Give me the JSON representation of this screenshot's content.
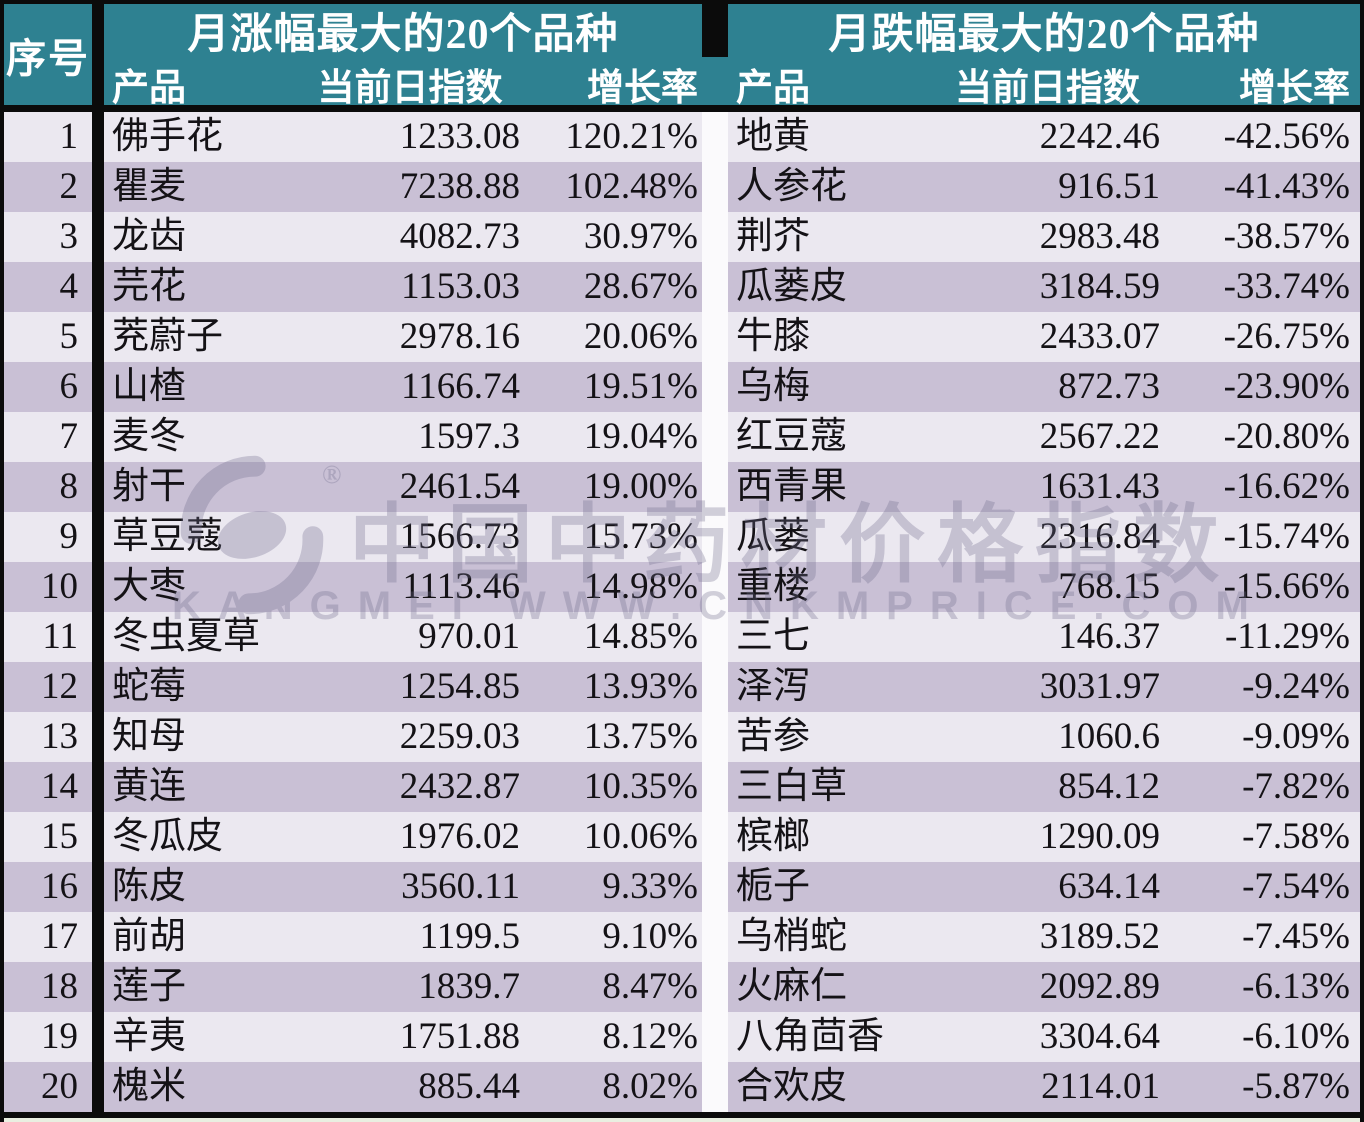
{
  "colors": {
    "header_teal": "#2E8191",
    "row_light": "#EBE8F0",
    "row_dark": "#C9C0D5",
    "border_black": "#0B0B0B",
    "header_text": "#FFFFFF",
    "body_text": "#141216"
  },
  "table": {
    "index_header": "序号",
    "gainers": {
      "title": "月涨幅最大的20个品种",
      "columns": [
        "产品",
        "当前日指数",
        "增长率"
      ],
      "rows": [
        {
          "rank": 1,
          "product": "佛手花",
          "index": "1233.08",
          "rate": "120.21%"
        },
        {
          "rank": 2,
          "product": "瞿麦",
          "index": "7238.88",
          "rate": "102.48%"
        },
        {
          "rank": 3,
          "product": "龙齿",
          "index": "4082.73",
          "rate": "30.97%"
        },
        {
          "rank": 4,
          "product": "芫花",
          "index": "1153.03",
          "rate": "28.67%"
        },
        {
          "rank": 5,
          "product": "茺蔚子",
          "index": "2978.16",
          "rate": "20.06%"
        },
        {
          "rank": 6,
          "product": "山楂",
          "index": "1166.74",
          "rate": "19.51%"
        },
        {
          "rank": 7,
          "product": "麦冬",
          "index": "1597.3",
          "rate": "19.04%"
        },
        {
          "rank": 8,
          "product": "射干",
          "index": "2461.54",
          "rate": "19.00%"
        },
        {
          "rank": 9,
          "product": "草豆蔻",
          "index": "1566.73",
          "rate": "15.73%"
        },
        {
          "rank": 10,
          "product": "大枣",
          "index": "1113.46",
          "rate": "14.98%"
        },
        {
          "rank": 11,
          "product": "冬虫夏草",
          "index": "970.01",
          "rate": "14.85%"
        },
        {
          "rank": 12,
          "product": "蛇莓",
          "index": "1254.85",
          "rate": "13.93%"
        },
        {
          "rank": 13,
          "product": "知母",
          "index": "2259.03",
          "rate": "13.75%"
        },
        {
          "rank": 14,
          "product": "黄连",
          "index": "2432.87",
          "rate": "10.35%"
        },
        {
          "rank": 15,
          "product": "冬瓜皮",
          "index": "1976.02",
          "rate": "10.06%"
        },
        {
          "rank": 16,
          "product": "陈皮",
          "index": "3560.11",
          "rate": "9.33%"
        },
        {
          "rank": 17,
          "product": "前胡",
          "index": "1199.5",
          "rate": "9.10%"
        },
        {
          "rank": 18,
          "product": "莲子",
          "index": "1839.7",
          "rate": "8.47%"
        },
        {
          "rank": 19,
          "product": "辛夷",
          "index": "1751.88",
          "rate": "8.12%"
        },
        {
          "rank": 20,
          "product": "槐米",
          "index": "885.44",
          "rate": "8.02%"
        }
      ]
    },
    "losers": {
      "title": "月跌幅最大的20个品种",
      "columns": [
        "产品",
        "当前日指数",
        "增长率"
      ],
      "rows": [
        {
          "rank": 1,
          "product": "地黄",
          "index": "2242.46",
          "rate": "-42.56%"
        },
        {
          "rank": 2,
          "product": "人参花",
          "index": "916.51",
          "rate": "-41.43%"
        },
        {
          "rank": 3,
          "product": "荆芥",
          "index": "2983.48",
          "rate": "-38.57%"
        },
        {
          "rank": 4,
          "product": "瓜蒌皮",
          "index": "3184.59",
          "rate": "-33.74%"
        },
        {
          "rank": 5,
          "product": "牛膝",
          "index": "2433.07",
          "rate": "-26.75%"
        },
        {
          "rank": 6,
          "product": "乌梅",
          "index": "872.73",
          "rate": "-23.90%"
        },
        {
          "rank": 7,
          "product": "红豆蔻",
          "index": "2567.22",
          "rate": "-20.80%"
        },
        {
          "rank": 8,
          "product": "西青果",
          "index": "1631.43",
          "rate": "-16.62%"
        },
        {
          "rank": 9,
          "product": "瓜蒌",
          "index": "2316.84",
          "rate": "-15.74%"
        },
        {
          "rank": 10,
          "product": "重楼",
          "index": "768.15",
          "rate": "-15.66%"
        },
        {
          "rank": 11,
          "product": "三七",
          "index": "146.37",
          "rate": "-11.29%"
        },
        {
          "rank": 12,
          "product": "泽泻",
          "index": "3031.97",
          "rate": "-9.24%"
        },
        {
          "rank": 13,
          "product": "苦参",
          "index": "1060.6",
          "rate": "-9.09%"
        },
        {
          "rank": 14,
          "product": "三白草",
          "index": "854.12",
          "rate": "-7.82%"
        },
        {
          "rank": 15,
          "product": "槟榔",
          "index": "1290.09",
          "rate": "-7.58%"
        },
        {
          "rank": 16,
          "product": "栀子",
          "index": "634.14",
          "rate": "-7.54%"
        },
        {
          "rank": 17,
          "product": "乌梢蛇",
          "index": "3189.52",
          "rate": "-7.45%"
        },
        {
          "rank": 18,
          "product": "火麻仁",
          "index": "2092.89",
          "rate": "-6.13%"
        },
        {
          "rank": 19,
          "product": "八角茴香",
          "index": "3304.64",
          "rate": "-6.10%"
        },
        {
          "rank": 20,
          "product": "合欢皮",
          "index": "2114.01",
          "rate": "-5.87%"
        }
      ]
    }
  },
  "watermark": {
    "logo": "kangmei-swirl-logo",
    "registered_mark": "®",
    "text_cn": "中国中药材价格指数",
    "text_en": "KANGMEI WWW.CNKMPRICE.COM"
  },
  "chart_data": [
    {
      "type": "table",
      "title": "月涨幅最大的20个品种",
      "columns": [
        "序号",
        "产品",
        "当前日指数",
        "增长率"
      ],
      "rows": [
        [
          1,
          "佛手花",
          1233.08,
          "120.21%"
        ],
        [
          2,
          "瞿麦",
          7238.88,
          "102.48%"
        ],
        [
          3,
          "龙齿",
          4082.73,
          "30.97%"
        ],
        [
          4,
          "芫花",
          1153.03,
          "28.67%"
        ],
        [
          5,
          "茺蔚子",
          2978.16,
          "20.06%"
        ],
        [
          6,
          "山楂",
          1166.74,
          "19.51%"
        ],
        [
          7,
          "麦冬",
          1597.3,
          "19.04%"
        ],
        [
          8,
          "射干",
          2461.54,
          "19.00%"
        ],
        [
          9,
          "草豆蔻",
          1566.73,
          "15.73%"
        ],
        [
          10,
          "大枣",
          1113.46,
          "14.98%"
        ],
        [
          11,
          "冬虫夏草",
          970.01,
          "14.85%"
        ],
        [
          12,
          "蛇莓",
          1254.85,
          "13.93%"
        ],
        [
          13,
          "知母",
          2259.03,
          "13.75%"
        ],
        [
          14,
          "黄连",
          2432.87,
          "10.35%"
        ],
        [
          15,
          "冬瓜皮",
          1976.02,
          "10.06%"
        ],
        [
          16,
          "陈皮",
          3560.11,
          "9.33%"
        ],
        [
          17,
          "前胡",
          1199.5,
          "9.10%"
        ],
        [
          18,
          "莲子",
          1839.7,
          "8.47%"
        ],
        [
          19,
          "辛夷",
          1751.88,
          "8.12%"
        ],
        [
          20,
          "槐米",
          885.44,
          "8.02%"
        ]
      ]
    },
    {
      "type": "table",
      "title": "月跌幅最大的20个品种",
      "columns": [
        "序号",
        "产品",
        "当前日指数",
        "增长率"
      ],
      "rows": [
        [
          1,
          "地黄",
          2242.46,
          "-42.56%"
        ],
        [
          2,
          "人参花",
          916.51,
          "-41.43%"
        ],
        [
          3,
          "荆芥",
          2983.48,
          "-38.57%"
        ],
        [
          4,
          "瓜蒌皮",
          3184.59,
          "-33.74%"
        ],
        [
          5,
          "牛膝",
          2433.07,
          "-26.75%"
        ],
        [
          6,
          "乌梅",
          872.73,
          "-23.90%"
        ],
        [
          7,
          "红豆蔻",
          2567.22,
          "-20.80%"
        ],
        [
          8,
          "西青果",
          1631.43,
          "-16.62%"
        ],
        [
          9,
          "瓜蒌",
          2316.84,
          "-15.74%"
        ],
        [
          10,
          "重楼",
          768.15,
          "-15.66%"
        ],
        [
          11,
          "三七",
          146.37,
          "-11.29%"
        ],
        [
          12,
          "泽泻",
          3031.97,
          "-9.24%"
        ],
        [
          13,
          "苦参",
          1060.6,
          "-9.09%"
        ],
        [
          14,
          "三白草",
          854.12,
          "-7.82%"
        ],
        [
          15,
          "槟榔",
          1290.09,
          "-7.58%"
        ],
        [
          16,
          "栀子",
          634.14,
          "-7.54%"
        ],
        [
          17,
          "乌梢蛇",
          3189.52,
          "-7.45%"
        ],
        [
          18,
          "火麻仁",
          2092.89,
          "-6.13%"
        ],
        [
          19,
          "八角茴香",
          3304.64,
          "-6.10%"
        ],
        [
          20,
          "合欢皮",
          2114.01,
          "-5.87%"
        ]
      ]
    }
  ]
}
